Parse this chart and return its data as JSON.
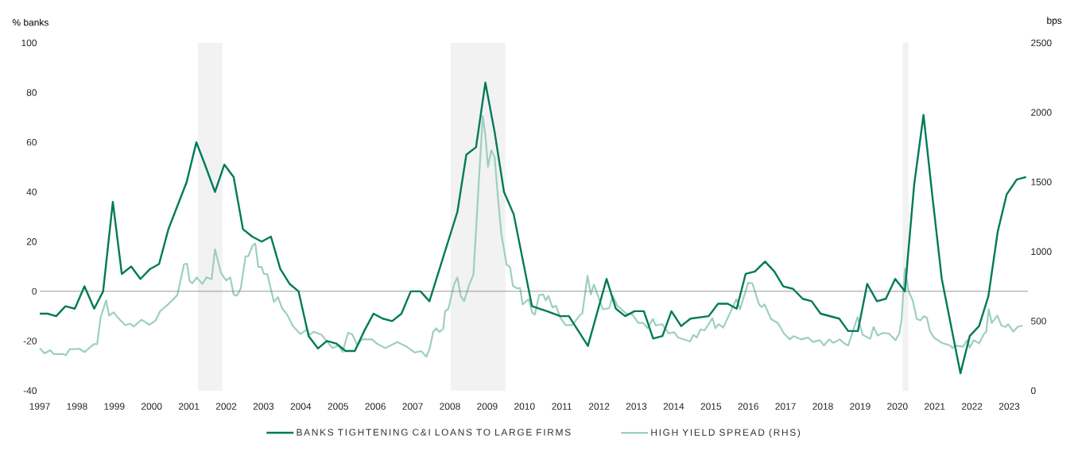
{
  "chart_data": {
    "type": "line",
    "ylabel": "% banks",
    "y2label": "bps",
    "xlim": [
      1997,
      2023.5
    ],
    "xticks": [
      1997,
      1998,
      1999,
      2000,
      2001,
      2002,
      2003,
      2004,
      2005,
      2006,
      2007,
      2008,
      2009,
      2010,
      2011,
      2012,
      2013,
      2014,
      2015,
      2016,
      2017,
      2018,
      2019,
      2020,
      2021,
      2022,
      2023
    ],
    "ylim": [
      -40,
      100
    ],
    "yticks": [
      -40,
      -20,
      0,
      20,
      40,
      60,
      80,
      100
    ],
    "y2lim": [
      0,
      2500
    ],
    "y2ticks": [
      0,
      500,
      1000,
      1500,
      2000,
      2500
    ],
    "legend": "bottom",
    "ref_lines": [
      {
        "axis": "y",
        "value": 0,
        "color": "#808080"
      }
    ],
    "bands": [
      {
        "axis": "x",
        "from": 2001.24,
        "to": 2001.9,
        "color": "#f2f2f2"
      },
      {
        "axis": "x",
        "from": 2008.02,
        "to": 2009.49,
        "color": "#f2f2f2"
      },
      {
        "axis": "x",
        "from": 2020.14,
        "to": 2020.3,
        "color": "#f2f2f2"
      }
    ],
    "series": [
      {
        "name": "BANKS TIGHTENING C&I LOANS TO LARGE FIRMS",
        "color": "#007a5a",
        "x": [
          1997.0,
          1997.21,
          1997.44,
          1997.69,
          1997.94,
          1998.2,
          1998.46,
          1998.7,
          1998.96,
          1999.2,
          1999.45,
          1999.7,
          1999.96,
          2000.2,
          2000.45,
          2000.94,
          2001.2,
          2001.43,
          2001.7,
          2001.95,
          2002.2,
          2002.45,
          2002.7,
          2002.95,
          2003.2,
          2003.45,
          2003.7,
          2003.94,
          2004.21,
          2004.46,
          2004.7,
          2004.95,
          2005.2,
          2005.45,
          2005.7,
          2005.95,
          2006.2,
          2006.45,
          2006.7,
          2006.95,
          2007.21,
          2007.45,
          2008.2,
          2008.44,
          2008.7,
          2008.95,
          2009.2,
          2009.45,
          2009.71,
          2010.2,
          2010.6,
          2010.96,
          2011.19,
          2011.7,
          2012.2,
          2012.45,
          2012.7,
          2012.95,
          2013.2,
          2013.45,
          2013.7,
          2013.94,
          2014.2,
          2014.45,
          2014.94,
          2015.19,
          2015.45,
          2015.69,
          2015.93,
          2016.18,
          2016.45,
          2016.7,
          2016.94,
          2017.2,
          2017.46,
          2017.7,
          2017.94,
          2018.44,
          2018.68,
          2018.94,
          2019.19,
          2019.45,
          2019.69,
          2019.94,
          2020.2,
          2020.45,
          2020.7,
          2020.94,
          2021.19,
          2021.69,
          2021.94,
          2022.19,
          2022.44,
          2022.69,
          2022.93,
          2023.2,
          2023.45
        ],
        "values": [
          -9,
          -9,
          -10,
          -6,
          -7,
          2,
          -7,
          0,
          36,
          7,
          10,
          5,
          9,
          11,
          25,
          44,
          60,
          51,
          40,
          51,
          46,
          25,
          22,
          20,
          22,
          9,
          3,
          0,
          -18,
          -23,
          -20,
          -21,
          -24,
          -24,
          -16,
          -9,
          -11,
          -12,
          -9,
          0,
          0,
          -4,
          32,
          55,
          58,
          84,
          64,
          40,
          31,
          -6,
          -8,
          -10,
          -10,
          -22,
          5,
          -7,
          -10,
          -8,
          -8,
          -19,
          -18,
          -8,
          -14,
          -11,
          -10,
          -5,
          -5,
          -7,
          7,
          8,
          12,
          8,
          2,
          1,
          -3,
          -4,
          -9,
          -11,
          -16,
          -16,
          3,
          -4,
          -3,
          5,
          0,
          43,
          71,
          38,
          5,
          -33,
          -18,
          -14,
          -2,
          24,
          39,
          45,
          46
        ]
      },
      {
        "name": "HIGH YIELD SPREAD (RHS)",
        "color": "#9dcfc0",
        "axis": "y2",
        "x": [
          1997.0,
          1997.13,
          1997.28,
          1997.38,
          1997.63,
          1997.7,
          1997.8,
          1998.06,
          1998.2,
          1998.45,
          1998.54,
          1998.63,
          1998.78,
          1998.86,
          1998.98,
          1999.13,
          1999.29,
          1999.43,
          1999.52,
          1999.73,
          1999.94,
          2000.1,
          2000.23,
          2000.44,
          2000.69,
          2000.87,
          2000.95,
          2001.02,
          2001.09,
          2001.21,
          2001.36,
          2001.47,
          2001.61,
          2001.7,
          2001.86,
          2002.0,
          2002.11,
          2002.2,
          2002.29,
          2002.39,
          2002.52,
          2002.59,
          2002.71,
          2002.78,
          2002.86,
          2002.95,
          2003.01,
          2003.1,
          2003.28,
          2003.39,
          2003.5,
          2003.64,
          2003.78,
          2003.99,
          2004.17,
          2004.24,
          2004.35,
          2004.56,
          2004.85,
          2005.02,
          2005.12,
          2005.27,
          2005.38,
          2005.52,
          2005.63,
          2005.91,
          2006.06,
          2006.27,
          2006.59,
          2006.84,
          2007.05,
          2007.23,
          2007.37,
          2007.46,
          2007.55,
          2007.63,
          2007.72,
          2007.82,
          2007.87,
          2007.96,
          2008.11,
          2008.2,
          2008.29,
          2008.38,
          2008.51,
          2008.63,
          2008.7,
          2008.79,
          2008.88,
          2008.95,
          2009.02,
          2009.11,
          2009.2,
          2009.29,
          2009.38,
          2009.52,
          2009.61,
          2009.69,
          2009.81,
          2009.88,
          2009.95,
          2010.11,
          2010.21,
          2010.28,
          2010.39,
          2010.5,
          2010.57,
          2010.64,
          2010.75,
          2010.84,
          2010.96,
          2011.1,
          2011.28,
          2011.49,
          2011.55,
          2011.69,
          2011.78,
          2011.86,
          2012.1,
          2012.27,
          2012.37,
          2012.49,
          2012.73,
          2012.89,
          2013.05,
          2013.18,
          2013.3,
          2013.44,
          2013.52,
          2013.69,
          2013.87,
          2014.01,
          2014.12,
          2014.44,
          2014.53,
          2014.62,
          2014.72,
          2014.83,
          2015.04,
          2015.12,
          2015.21,
          2015.33,
          2015.68,
          2015.78,
          2016.0,
          2016.11,
          2016.29,
          2016.36,
          2016.44,
          2016.61,
          2016.79,
          2016.96,
          2017.11,
          2017.21,
          2017.39,
          2017.43,
          2017.6,
          2017.74,
          2017.92,
          2018.03,
          2018.17,
          2018.28,
          2018.45,
          2018.6,
          2018.68,
          2018.93,
          2019.07,
          2019.27,
          2019.36,
          2019.47,
          2019.61,
          2019.77,
          2019.95,
          2020.05,
          2020.11,
          2020.2,
          2020.3,
          2020.41,
          2020.52,
          2020.62,
          2020.71,
          2020.79,
          2020.87,
          2020.98,
          2021.19,
          2021.41,
          2021.48,
          2021.55,
          2021.76,
          2021.87,
          2021.94,
          2022.05,
          2022.19,
          2022.33,
          2022.38,
          2022.45,
          2022.53,
          2022.68,
          2022.79,
          2022.9,
          2022.97,
          2023.11,
          2023.22,
          2023.36
        ],
        "values": [
          306,
          268,
          291,
          263,
          263,
          255,
          297,
          301,
          278,
          335,
          335,
          525,
          649,
          540,
          563,
          515,
          472,
          481,
          462,
          510,
          474,
          502,
          572,
          620,
          687,
          909,
          913,
          788,
          772,
          814,
          767,
          814,
          801,
          1016,
          845,
          792,
          814,
          691,
          683,
          735,
          966,
          966,
          1043,
          1058,
          890,
          890,
          839,
          839,
          639,
          672,
          592,
          544,
          468,
          407,
          440,
          401,
          424,
          401,
          306,
          325,
          278,
          417,
          405,
          325,
          369,
          369,
          335,
          306,
          350,
          316,
          274,
          284,
          244,
          306,
          421,
          449,
          421,
          445,
          572,
          588,
          763,
          814,
          681,
          643,
          757,
          833,
          1153,
          1571,
          1975,
          1838,
          1610,
          1728,
          1676,
          1381,
          1124,
          906,
          890,
          753,
          735,
          738,
          620,
          658,
          559,
          548,
          687,
          692,
          649,
          681,
          598,
          611,
          525,
          472,
          472,
          544,
          554,
          826,
          692,
          763,
          586,
          592,
          681,
          611,
          554,
          548,
          487,
          487,
          449,
          515,
          468,
          478,
          411,
          421,
          382,
          354,
          401,
          382,
          440,
          434,
          521,
          449,
          478,
          453,
          658,
          586,
          776,
          772,
          620,
          601,
          620,
          515,
          487,
          411,
          369,
          392,
          373,
          369,
          382,
          350,
          363,
          325,
          369,
          344,
          369,
          335,
          325,
          529,
          401,
          373,
          458,
          396,
          415,
          411,
          363,
          411,
          506,
          877,
          715,
          649,
          515,
          506,
          535,
          525,
          430,
          382,
          344,
          325,
          306,
          325,
          316,
          363,
          310,
          363,
          339,
          411,
          421,
          586,
          487,
          540,
          468,
          458,
          478,
          424,
          458,
          468
        ]
      }
    ]
  }
}
